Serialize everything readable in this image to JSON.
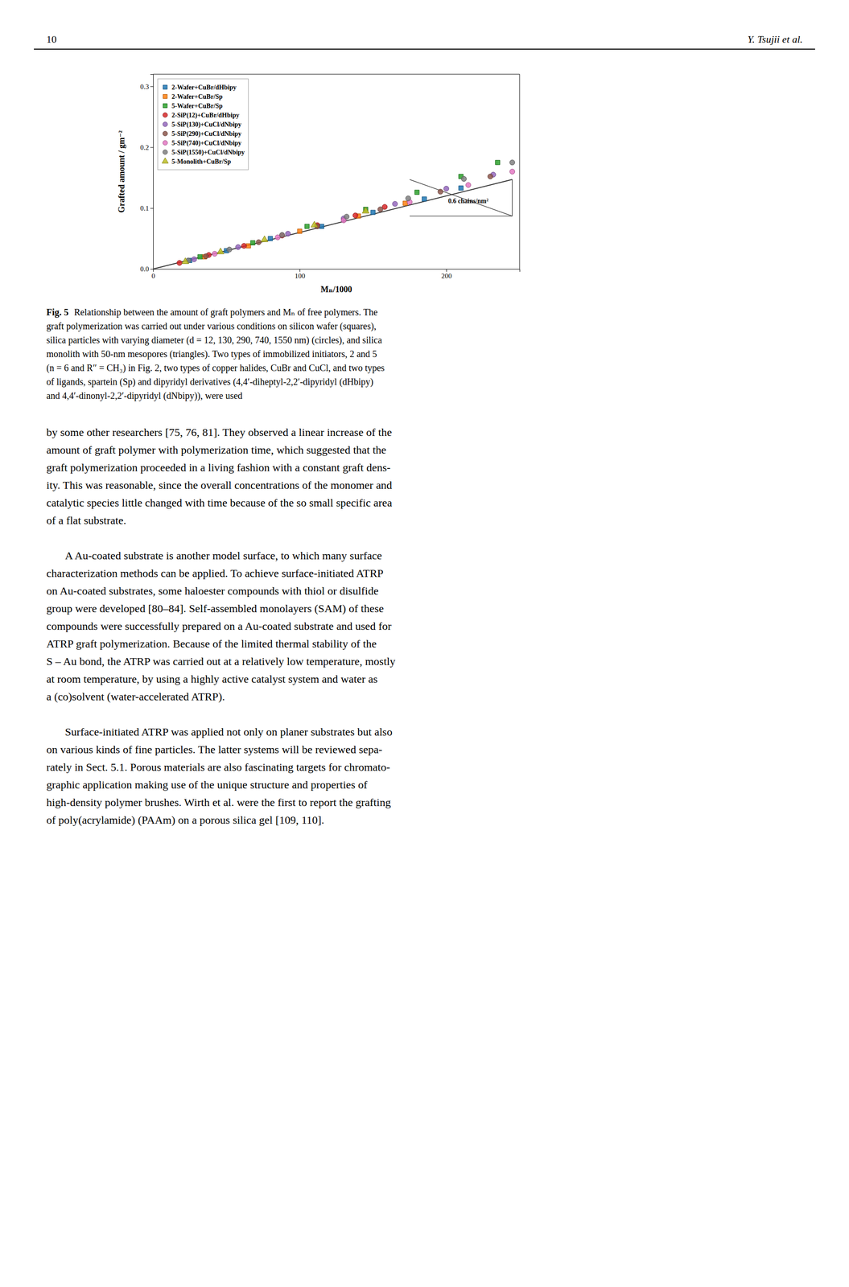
{
  "page_num": "10",
  "author": "Y. Tsujii et al.",
  "chart_data": {
    "type": "scatter",
    "x_label": "Mₙ/1000",
    "y_label": "Grafted amount / gm⁻²",
    "xlim": [
      0,
      250
    ],
    "ylim": [
      0.0,
      0.32
    ],
    "xticks": [
      {
        "value": 0,
        "label": "0"
      },
      100,
      200
    ],
    "yticks": [
      {
        "value": 0.0,
        "label": "0.0"
      },
      0.1,
      0.2,
      0.3
    ],
    "grid": false,
    "legend": "upper left",
    "series": [
      {
        "type": "line",
        "line_style": "solid",
        "x": [
          0,
          245
        ],
        "values": [
          0.0,
          0.147
        ]
      },
      {
        "name": "2-Wafer+CuBr/dHbipy",
        "marker": "square",
        "x": [
          25,
          50,
          80,
          115,
          150,
          185,
          210
        ],
        "values": [
          0.014,
          0.03,
          0.05,
          0.07,
          0.093,
          0.115,
          0.133
        ]
      },
      {
        "name": "2-Wafer+CuBr/Sp",
        "marker": "square",
        "x": [
          35,
          65,
          100,
          140,
          172
        ],
        "values": [
          0.02,
          0.038,
          0.062,
          0.087,
          0.108
        ]
      },
      {
        "name": "5-Wafer+CuBr/Sp",
        "marker": "square",
        "x": [
          32,
          68,
          105,
          145,
          180,
          210,
          235
        ],
        "values": [
          0.02,
          0.043,
          0.07,
          0.098,
          0.126,
          0.152,
          0.175
        ]
      },
      {
        "name": "2-SiP(12)+CuBr/dHbipy",
        "marker": "circle",
        "x": [
          18,
          38,
          62,
          88,
          112,
          138,
          158
        ],
        "values": [
          0.01,
          0.023,
          0.038,
          0.055,
          0.072,
          0.088,
          0.102
        ]
      },
      {
        "name": "5-SiP(130)+CuCl/dNbipy",
        "marker": "circle",
        "x": [
          28,
          58,
          92,
          130,
          165,
          200,
          232
        ],
        "values": [
          0.016,
          0.036,
          0.058,
          0.083,
          0.107,
          0.132,
          0.155
        ]
      },
      {
        "name": "5-SiP(290)+CuCl/dNbipy",
        "marker": "circle",
        "x": [
          36,
          72,
          112,
          155,
          196,
          230
        ],
        "values": [
          0.021,
          0.044,
          0.07,
          0.098,
          0.127,
          0.152
        ]
      },
      {
        "name": "5-SiP(740)+CuCl/dNbipy",
        "marker": "circle",
        "x": [
          42,
          85,
          130,
          175,
          215,
          245
        ],
        "values": [
          0.025,
          0.052,
          0.08,
          0.11,
          0.138,
          0.16
        ]
      },
      {
        "name": "5-SiP(1550)+CuCl/dNbipy",
        "marker": "circle",
        "x": [
          24,
          52,
          88,
          132,
          174,
          212,
          245
        ],
        "values": [
          0.014,
          0.032,
          0.056,
          0.086,
          0.116,
          0.148,
          0.175
        ]
      },
      {
        "name": "5-Monolith+CuBr/Sp",
        "marker": "triangle",
        "x": [
          22,
          46,
          76,
          110,
          145
        ],
        "values": [
          0.012,
          0.028,
          0.048,
          0.072,
          0.095
        ]
      }
    ],
    "slope_triangle": {
      "x1": 175,
      "y1": 0.087,
      "x2": 245,
      "y2": 0.147
    },
    "annotations": [
      {
        "text": "0.6 chains/nm²",
        "x": 215,
        "y": 0.112
      }
    ]
  },
  "caption_label": "Fig. 5",
  "caption": [
    "Relationship between the amount of graft polymers and Mₙ of free polymers. The",
    "graft polymerization was carried out under various conditions on silicon wafer (squares),",
    "silica particles with varying diameter (d = 12, 130, 290, 740, 1550 nm) (circles), and silica",
    "monolith with 50-nm mesopores (triangles). Two types of immobilized initiators, 2 and 5",
    "(n = 6 and R″ = CH₃) in Fig. 2, two types of copper halides, CuBr and CuCl, and two types",
    "of ligands, spartein (Sp) and dipyridyl derivatives (4,4′-diheptyl-2,2′-dipyridyl (dHbipy)",
    "and 4,4′-dinonyl-2,2′-dipyridyl (dNbipy)), were used"
  ],
  "body": [
    [
      "by some other researchers [75, 76, 81]. They observed a linear increase of the",
      "amount of graft polymer with polymerization time, which suggested that the",
      "graft polymerization proceeded in a living fashion with a constant graft dens-",
      "ity. This was reasonable, since the overall concentrations of the monomer and",
      "catalytic species little changed with time because of the so small specific area",
      "of a flat substrate."
    ],
    [
      "A Au-coated substrate is another model surface, to which many surface",
      "characterization methods can be applied. To achieve surface-initiated ATRP",
      "on Au-coated substrates, some haloester compounds with thiol or disulfide",
      "group were developed [80–84]. Self-assembled monolayers (SAM) of these",
      "compounds were successfully prepared on a Au-coated substrate and used for",
      "ATRP graft polymerization. Because of the limited thermal stability of the",
      "S – Au bond, the ATRP was carried out at a relatively low temperature, mostly",
      "at room temperature, by using a highly active catalyst system and water as",
      "a (co)solvent (water-accelerated ATRP)."
    ],
    [
      "Surface-initiated ATRP was applied not only on planer substrates but also",
      "on various kinds of fine particles. The latter systems will be reviewed sepa-",
      "rately in Sect. 5.1. Porous materials are also fascinating targets for chromato-",
      "graphic application making use of the unique structure and properties of",
      "high-density polymer brushes. Wirth et al. were the first to report the grafting",
      "of poly(acrylamide) (PAAm) on a porous silica gel [109, 110]."
    ]
  ]
}
